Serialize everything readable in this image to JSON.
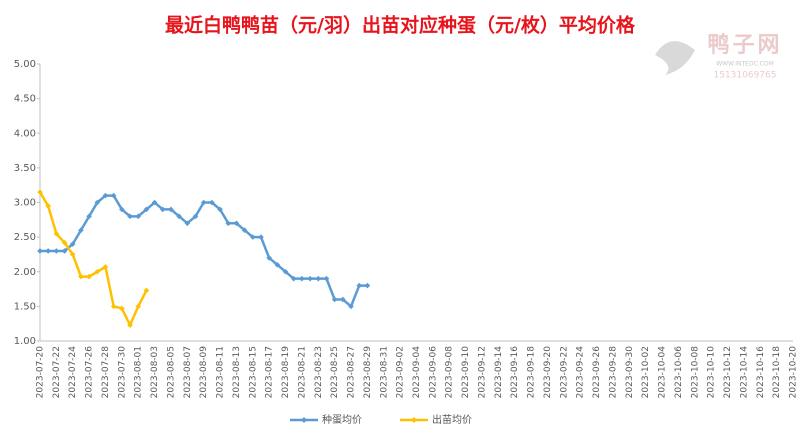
{
  "chart_data": {
    "type": "line",
    "title": "最近白鸭鸭苗（元/羽）出苗对应种蛋（元/枚）平均价格",
    "categories": [
      "2023-07-20",
      null,
      "2023-07-22",
      null,
      "2023-07-24",
      null,
      "2023-07-26",
      null,
      "2023-07-28",
      null,
      "2023-07-30",
      null,
      "2023-08-01",
      null,
      "2023-08-03",
      null,
      "2023-08-05",
      null,
      "2023-08-07",
      null,
      "2023-08-09",
      null,
      "2023-08-11",
      null,
      "2023-08-13",
      null,
      "2023-08-15",
      null,
      "2023-08-17",
      null,
      "2023-08-19",
      null,
      "2023-08-21",
      null,
      "2023-08-23",
      null,
      "2023-08-25",
      null,
      "2023-08-27",
      null,
      "2023-08-29",
      null,
      "2023-08-31",
      null,
      "2023-09-02",
      null,
      "2023-09-04",
      null,
      "2023-09-06",
      null,
      "2023-09-08",
      null,
      "2023-09-10",
      null,
      "2023-09-12",
      null,
      "2023-09-14",
      null,
      "2023-09-16",
      null,
      "2023-09-18",
      null,
      "2023-09-20",
      null,
      "2023-09-22",
      null,
      "2023-09-24",
      null,
      "2023-09-26",
      null,
      "2023-09-28",
      null,
      "2023-09-30",
      null,
      "2023-10-02",
      null,
      "2023-10-04",
      null,
      "2023-10-06",
      null,
      "2023-10-08",
      null,
      "2023-10-10",
      null,
      "2023-10-12",
      null,
      "2023-10-14",
      null,
      "2023-10-16",
      null,
      "2023-10-18",
      null,
      "2023-10-20"
    ],
    "series": [
      {
        "name": "种蛋均价",
        "color": "#5b9bd5",
        "values": [
          2.3,
          2.3,
          2.3,
          2.3,
          2.4,
          2.6,
          2.8,
          3.0,
          3.1,
          3.1,
          2.9,
          2.8,
          2.8,
          2.9,
          3.0,
          2.9,
          2.9,
          2.8,
          2.7,
          2.8,
          3.0,
          3.0,
          2.9,
          2.7,
          2.7,
          2.6,
          2.5,
          2.5,
          2.2,
          2.1,
          2.0,
          1.9,
          1.9,
          1.9,
          1.9,
          1.9,
          1.6,
          1.6,
          1.5,
          1.8,
          1.8,
          null,
          null,
          null,
          null,
          null,
          null,
          null,
          null,
          null,
          null,
          null,
          null,
          null,
          null,
          null,
          null,
          null,
          null,
          null,
          null,
          null,
          null,
          null,
          null,
          null,
          null,
          null,
          null,
          null,
          null,
          null,
          null,
          null,
          null,
          null,
          null,
          null,
          null,
          null,
          null,
          null,
          null,
          null,
          null,
          null,
          null,
          null,
          null,
          null,
          null,
          null,
          null
        ]
      },
      {
        "name": "出苗均价",
        "color": "#ffc000",
        "values": [
          3.15,
          2.95,
          2.55,
          2.42,
          2.25,
          1.93,
          1.93,
          2.0,
          2.07,
          1.5,
          1.47,
          1.23,
          1.5,
          1.73,
          null,
          null,
          null,
          null,
          null,
          null,
          null,
          null,
          null,
          null,
          null,
          null,
          null,
          null,
          null,
          null,
          null,
          null,
          null,
          null,
          null,
          null,
          null,
          null,
          null,
          null,
          null,
          null,
          null,
          null,
          null,
          null,
          null,
          null,
          null,
          null,
          null,
          null,
          null,
          null,
          null,
          null,
          null,
          null,
          null,
          null,
          null,
          null,
          null,
          null,
          null,
          null,
          null,
          null,
          null,
          null,
          null,
          null,
          null,
          null,
          null,
          null,
          null,
          null,
          null,
          null,
          null,
          null,
          null,
          null,
          null,
          null,
          null,
          null,
          null,
          null,
          null,
          null,
          null
        ]
      }
    ],
    "ylim": [
      1,
      5
    ],
    "yticks": [
      {
        "value": 1,
        "label": "1.00"
      },
      {
        "value": 1.5,
        "label": "1.50"
      },
      {
        "value": 2,
        "label": "2.00"
      },
      {
        "value": 2.5,
        "label": "2.50"
      },
      {
        "value": 3,
        "label": "3.00"
      },
      {
        "value": 3.5,
        "label": "3.50"
      },
      {
        "value": 4,
        "label": "4.00"
      },
      {
        "value": 4.5,
        "label": "4.50"
      },
      {
        "value": 5,
        "label": "5.00"
      }
    ],
    "grid": false,
    "legend": "bottom"
  },
  "watermark": {
    "name": "鸭子网",
    "url": "WWW.INTEDC.COM",
    "phone": "15131069765"
  }
}
